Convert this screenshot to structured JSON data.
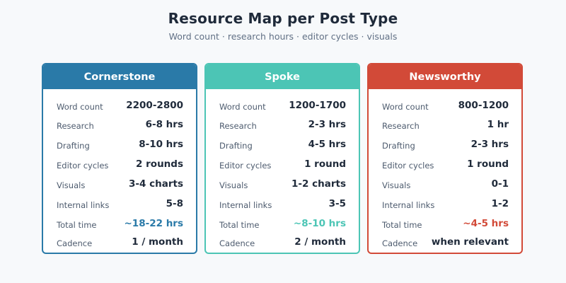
{
  "title": "Resource Map per Post Type",
  "subtitle": "Word count · research hours · editor cycles · visuals",
  "row_labels": [
    "Word count",
    "Research",
    "Drafting",
    "Editor cycles",
    "Visuals",
    "Internal links",
    "Total time",
    "Cadence"
  ],
  "cards": [
    {
      "name": "Cornerstone",
      "color": "#2a7aa8",
      "values": [
        "2200-2800",
        "6-8 hrs",
        "8-10 hrs",
        "2 rounds",
        "3-4 charts",
        "5-8",
        "~18-22 hrs",
        "1 / month"
      ]
    },
    {
      "name": "Spoke",
      "color": "#4cc5b5",
      "values": [
        "1200-1700",
        "2-3 hrs",
        "4-5 hrs",
        "1 round",
        "1-2 charts",
        "3-5",
        "~8-10 hrs",
        "2 / month"
      ]
    },
    {
      "name": "Newsworthy",
      "color": "#d24a38",
      "values": [
        "800-1200",
        "1 hr",
        "2-3 hrs",
        "1 round",
        "0-1",
        "1-2",
        "~4-5 hrs",
        "when relevant"
      ]
    }
  ],
  "text_color": "#1f2a3a",
  "label_color": "#4d5b6e"
}
